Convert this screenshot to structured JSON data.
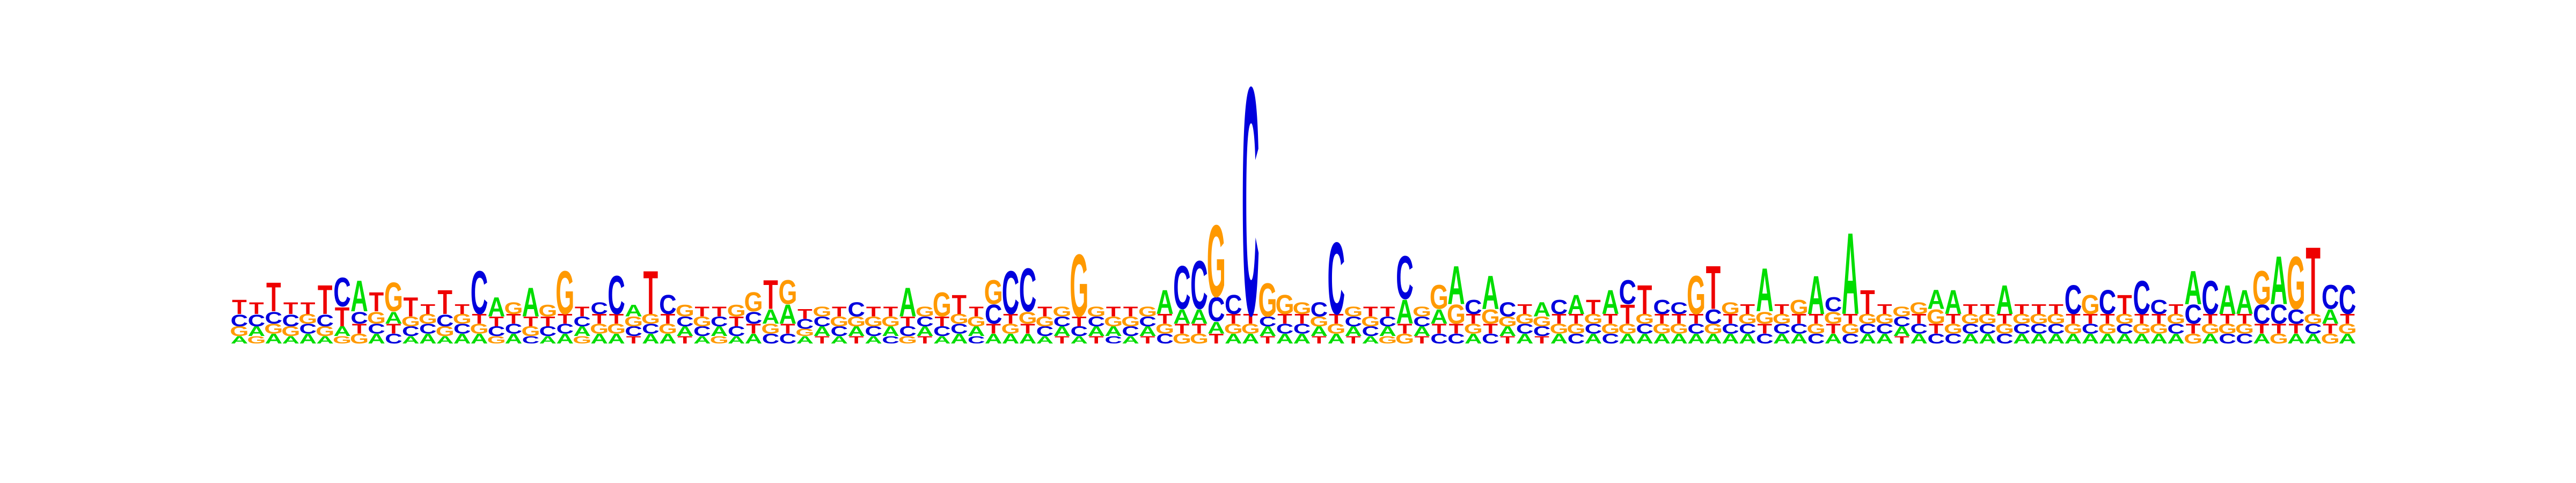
{
  "chart_data": {
    "type": "sequence-logo",
    "title": "",
    "xlabel": "",
    "ylabel": "",
    "alphabet": [
      "A",
      "C",
      "G",
      "T"
    ],
    "colors": {
      "A": "#00dd00",
      "C": "#0000dd",
      "G": "#ff9900",
      "T": "#ee0000"
    },
    "ylim": [
      0,
      2
    ],
    "ticks_shown": false,
    "positions": [
      {
        "A": 0.03,
        "C": 0.05,
        "G": 0.04,
        "T": 0.06
      },
      {
        "A": 0.04,
        "C": 0.05,
        "G": 0.03,
        "T": 0.05
      },
      {
        "A": 0.04,
        "C": 0.05,
        "G": 0.04,
        "T": 0.12
      },
      {
        "A": 0.03,
        "C": 0.05,
        "G": 0.04,
        "T": 0.05
      },
      {
        "A": 0.04,
        "C": 0.04,
        "G": 0.04,
        "T": 0.05
      },
      {
        "A": 0.03,
        "C": 0.05,
        "G": 0.04,
        "T": 0.12
      },
      {
        "A": 0.04,
        "C": 0.12,
        "G": 0.03,
        "T": 0.08
      },
      {
        "A": 0.13,
        "C": 0.05,
        "G": 0.04,
        "T": 0.04
      },
      {
        "A": 0.04,
        "C": 0.04,
        "G": 0.05,
        "T": 0.08
      },
      {
        "A": 0.05,
        "C": 0.04,
        "G": 0.12,
        "T": 0.04
      },
      {
        "A": 0.03,
        "C": 0.04,
        "G": 0.04,
        "T": 0.08
      },
      {
        "A": 0.04,
        "C": 0.04,
        "G": 0.04,
        "T": 0.04
      },
      {
        "A": 0.03,
        "C": 0.05,
        "G": 0.04,
        "T": 0.1
      },
      {
        "A": 0.04,
        "C": 0.04,
        "G": 0.04,
        "T": 0.04
      },
      {
        "A": 0.04,
        "C": 0.18,
        "G": 0.04,
        "T": 0.04
      },
      {
        "A": 0.08,
        "C": 0.04,
        "G": 0.03,
        "T": 0.04
      },
      {
        "A": 0.04,
        "C": 0.04,
        "G": 0.05,
        "T": 0.04
      },
      {
        "A": 0.12,
        "C": 0.03,
        "G": 0.04,
        "T": 0.04
      },
      {
        "A": 0.03,
        "C": 0.04,
        "G": 0.05,
        "T": 0.04
      },
      {
        "A": 0.04,
        "C": 0.04,
        "G": 0.18,
        "T": 0.04
      },
      {
        "A": 0.04,
        "C": 0.04,
        "G": 0.03,
        "T": 0.04
      },
      {
        "A": 0.04,
        "C": 0.05,
        "G": 0.04,
        "T": 0.04
      },
      {
        "A": 0.04,
        "C": 0.16,
        "G": 0.04,
        "T": 0.04
      },
      {
        "A": 0.05,
        "C": 0.04,
        "G": 0.04,
        "T": 0.03
      },
      {
        "A": 0.04,
        "C": 0.04,
        "G": 0.04,
        "T": 0.18
      },
      {
        "A": 0.04,
        "C": 0.08,
        "G": 0.04,
        "T": 0.04
      },
      {
        "A": 0.04,
        "C": 0.04,
        "G": 0.05,
        "T": 0.03
      },
      {
        "A": 0.03,
        "C": 0.04,
        "G": 0.04,
        "T": 0.04
      },
      {
        "A": 0.04,
        "C": 0.04,
        "G": 0.03,
        "T": 0.04
      },
      {
        "A": 0.03,
        "C": 0.04,
        "G": 0.05,
        "T": 0.04
      },
      {
        "A": 0.04,
        "C": 0.05,
        "G": 0.08,
        "T": 0.04
      },
      {
        "A": 0.06,
        "C": 0.04,
        "G": 0.04,
        "T": 0.12
      },
      {
        "A": 0.08,
        "C": 0.04,
        "G": 0.1,
        "T": 0.04
      },
      {
        "A": 0.03,
        "C": 0.04,
        "G": 0.03,
        "T": 0.04
      },
      {
        "A": 0.04,
        "C": 0.04,
        "G": 0.04,
        "T": 0.03
      },
      {
        "A": 0.03,
        "C": 0.04,
        "G": 0.04,
        "T": 0.04
      },
      {
        "A": 0.04,
        "C": 0.06,
        "G": 0.04,
        "T": 0.03
      },
      {
        "A": 0.03,
        "C": 0.04,
        "G": 0.04,
        "T": 0.04
      },
      {
        "A": 0.04,
        "C": 0.03,
        "G": 0.04,
        "T": 0.04
      },
      {
        "A": 0.12,
        "C": 0.04,
        "G": 0.03,
        "T": 0.04
      },
      {
        "A": 0.04,
        "C": 0.04,
        "G": 0.04,
        "T": 0.03
      },
      {
        "A": 0.03,
        "C": 0.04,
        "G": 0.1,
        "T": 0.04
      },
      {
        "A": 0.04,
        "C": 0.04,
        "G": 0.04,
        "T": 0.08
      },
      {
        "A": 0.04,
        "C": 0.03,
        "G": 0.04,
        "T": 0.04
      },
      {
        "A": 0.04,
        "C": 0.08,
        "G": 0.1,
        "T": 0.04
      },
      {
        "A": 0.04,
        "C": 0.18,
        "G": 0.04,
        "T": 0.04
      },
      {
        "A": 0.04,
        "C": 0.18,
        "G": 0.05,
        "T": 0.04
      },
      {
        "A": 0.03,
        "C": 0.04,
        "G": 0.04,
        "T": 0.04
      },
      {
        "A": 0.04,
        "C": 0.04,
        "G": 0.04,
        "T": 0.03
      },
      {
        "A": 0.03,
        "C": 0.04,
        "G": 0.26,
        "T": 0.04
      },
      {
        "A": 0.04,
        "C": 0.04,
        "G": 0.04,
        "T": 0.03
      },
      {
        "A": 0.04,
        "C": 0.03,
        "G": 0.04,
        "T": 0.04
      },
      {
        "A": 0.03,
        "C": 0.04,
        "G": 0.04,
        "T": 0.04
      },
      {
        "A": 0.04,
        "C": 0.04,
        "G": 0.04,
        "T": 0.03
      },
      {
        "A": 0.1,
        "C": 0.04,
        "G": 0.04,
        "T": 0.04
      },
      {
        "A": 0.06,
        "C": 0.18,
        "G": 0.04,
        "T": 0.04
      },
      {
        "A": 0.06,
        "C": 0.2,
        "G": 0.04,
        "T": 0.04
      },
      {
        "A": 0.05,
        "C": 0.1,
        "G": 0.3,
        "T": 0.04
      },
      {
        "A": 0.04,
        "C": 0.08,
        "G": 0.04,
        "T": 0.04
      },
      {
        "A": 0.04,
        "C": 0.95,
        "G": 0.04,
        "T": 0.04
      },
      {
        "A": 0.04,
        "C": 0.04,
        "G": 0.14,
        "T": 0.03
      },
      {
        "A": 0.04,
        "C": 0.04,
        "G": 0.08,
        "T": 0.04
      },
      {
        "A": 0.04,
        "C": 0.04,
        "G": 0.05,
        "T": 0.04
      },
      {
        "A": 0.04,
        "C": 0.06,
        "G": 0.04,
        "T": 0.03
      },
      {
        "A": 0.04,
        "C": 0.3,
        "G": 0.04,
        "T": 0.04
      },
      {
        "A": 0.04,
        "C": 0.04,
        "G": 0.04,
        "T": 0.03
      },
      {
        "A": 0.03,
        "C": 0.04,
        "G": 0.04,
        "T": 0.04
      },
      {
        "A": 0.04,
        "C": 0.04,
        "G": 0.03,
        "T": 0.04
      },
      {
        "A": 0.1,
        "C": 0.18,
        "G": 0.04,
        "T": 0.04
      },
      {
        "A": 0.04,
        "C": 0.04,
        "G": 0.04,
        "T": 0.03
      },
      {
        "A": 0.06,
        "C": 0.04,
        "G": 0.1,
        "T": 0.04
      },
      {
        "A": 0.16,
        "C": 0.04,
        "G": 0.08,
        "T": 0.04
      },
      {
        "A": 0.04,
        "C": 0.06,
        "G": 0.04,
        "T": 0.04
      },
      {
        "A": 0.14,
        "C": 0.04,
        "G": 0.06,
        "T": 0.04
      },
      {
        "A": 0.04,
        "C": 0.06,
        "G": 0.04,
        "T": 0.03
      },
      {
        "A": 0.04,
        "C": 0.04,
        "G": 0.04,
        "T": 0.04
      },
      {
        "A": 0.06,
        "C": 0.04,
        "G": 0.04,
        "T": 0.03
      },
      {
        "A": 0.04,
        "C": 0.06,
        "G": 0.04,
        "T": 0.04
      },
      {
        "A": 0.08,
        "C": 0.04,
        "G": 0.04,
        "T": 0.04
      },
      {
        "A": 0.04,
        "C": 0.04,
        "G": 0.04,
        "T": 0.06
      },
      {
        "A": 0.1,
        "C": 0.04,
        "G": 0.04,
        "T": 0.04
      },
      {
        "A": 0.04,
        "C": 0.1,
        "G": 0.04,
        "T": 0.08
      },
      {
        "A": 0.04,
        "C": 0.04,
        "G": 0.04,
        "T": 0.12
      },
      {
        "A": 0.04,
        "C": 0.06,
        "G": 0.04,
        "T": 0.04
      },
      {
        "A": 0.04,
        "C": 0.05,
        "G": 0.04,
        "T": 0.04
      },
      {
        "A": 0.04,
        "C": 0.04,
        "G": 0.16,
        "T": 0.04
      },
      {
        "A": 0.04,
        "C": 0.06,
        "G": 0.04,
        "T": 0.18
      },
      {
        "A": 0.04,
        "C": 0.04,
        "G": 0.05,
        "T": 0.04
      },
      {
        "A": 0.04,
        "C": 0.04,
        "G": 0.04,
        "T": 0.04
      },
      {
        "A": 0.18,
        "C": 0.04,
        "G": 0.05,
        "T": 0.04
      },
      {
        "A": 0.04,
        "C": 0.04,
        "G": 0.04,
        "T": 0.04
      },
      {
        "A": 0.04,
        "C": 0.04,
        "G": 0.06,
        "T": 0.04
      },
      {
        "A": 0.16,
        "C": 0.04,
        "G": 0.04,
        "T": 0.04
      },
      {
        "A": 0.04,
        "C": 0.06,
        "G": 0.05,
        "T": 0.04
      },
      {
        "A": 0.34,
        "C": 0.04,
        "G": 0.04,
        "T": 0.04
      },
      {
        "A": 0.04,
        "C": 0.04,
        "G": 0.04,
        "T": 0.1
      },
      {
        "A": 0.04,
        "C": 0.04,
        "G": 0.04,
        "T": 0.04
      },
      {
        "A": 0.04,
        "C": 0.04,
        "G": 0.04,
        "T": 0.03
      },
      {
        "A": 0.04,
        "C": 0.04,
        "G": 0.05,
        "T": 0.04
      },
      {
        "A": 0.08,
        "C": 0.04,
        "G": 0.06,
        "T": 0.04
      },
      {
        "A": 0.1,
        "C": 0.04,
        "G": 0.04,
        "T": 0.04
      },
      {
        "A": 0.04,
        "C": 0.04,
        "G": 0.04,
        "T": 0.04
      },
      {
        "A": 0.04,
        "C": 0.04,
        "G": 0.04,
        "T": 0.04
      },
      {
        "A": 0.12,
        "C": 0.04,
        "G": 0.04,
        "T": 0.04
      },
      {
        "A": 0.04,
        "C": 0.04,
        "G": 0.04,
        "T": 0.04
      },
      {
        "A": 0.04,
        "C": 0.04,
        "G": 0.04,
        "T": 0.04
      },
      {
        "A": 0.04,
        "C": 0.04,
        "G": 0.04,
        "T": 0.04
      },
      {
        "A": 0.04,
        "C": 0.12,
        "G": 0.04,
        "T": 0.04
      },
      {
        "A": 0.04,
        "C": 0.04,
        "G": 0.08,
        "T": 0.04
      },
      {
        "A": 0.04,
        "C": 0.1,
        "G": 0.04,
        "T": 0.04
      },
      {
        "A": 0.04,
        "C": 0.04,
        "G": 0.04,
        "T": 0.08
      },
      {
        "A": 0.04,
        "C": 0.14,
        "G": 0.04,
        "T": 0.04
      },
      {
        "A": 0.04,
        "C": 0.06,
        "G": 0.04,
        "T": 0.04
      },
      {
        "A": 0.04,
        "C": 0.04,
        "G": 0.04,
        "T": 0.04
      },
      {
        "A": 0.14,
        "C": 0.08,
        "G": 0.04,
        "T": 0.04
      },
      {
        "A": 0.04,
        "C": 0.14,
        "G": 0.04,
        "T": 0.04
      },
      {
        "A": 0.12,
        "C": 0.04,
        "G": 0.04,
        "T": 0.04
      },
      {
        "A": 0.1,
        "C": 0.04,
        "G": 0.04,
        "T": 0.04
      },
      {
        "A": 0.04,
        "C": 0.08,
        "G": 0.14,
        "T": 0.04
      },
      {
        "A": 0.2,
        "C": 0.08,
        "G": 0.04,
        "T": 0.04
      },
      {
        "A": 0.04,
        "C": 0.06,
        "G": 0.22,
        "T": 0.04
      },
      {
        "A": 0.04,
        "C": 0.04,
        "G": 0.04,
        "T": 0.28
      },
      {
        "A": 0.06,
        "C": 0.1,
        "G": 0.04,
        "T": 0.04
      },
      {
        "A": 0.04,
        "C": 0.12,
        "G": 0.04,
        "T": 0.04
      }
    ]
  }
}
